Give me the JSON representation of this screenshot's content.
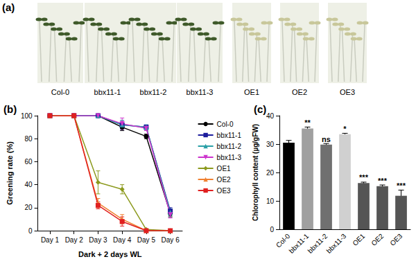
{
  "photo_panel": {
    "title": "(a)",
    "labels": [
      "Col-0",
      "bbx11-1",
      "bbx11-2",
      "bbx11-3",
      "OE1",
      "OE2",
      "OE3"
    ]
  },
  "chart_data": [
    {
      "type": "line",
      "title": "(b)",
      "x_label": "Dark + 2 days WL",
      "y_label": "Greening rate (%)",
      "categories": [
        "Day 1",
        "Day 2",
        "Day 3",
        "Day 4",
        "Day 5",
        "Day 6"
      ],
      "ylim": [
        0,
        100
      ],
      "yticks": [
        0,
        20,
        40,
        60,
        80,
        100
      ],
      "grid": false,
      "legend": "right",
      "series": [
        {
          "name": "Col-0",
          "color": "#000000",
          "marker": "circle",
          "values": [
            100,
            100,
            100,
            90,
            82,
            15
          ],
          "errors": [
            0,
            0,
            0,
            3,
            2,
            3
          ]
        },
        {
          "name": "bbx11-1",
          "color": "#1c1c9c",
          "marker": "square",
          "values": [
            100,
            100,
            100,
            92,
            90,
            17
          ],
          "errors": [
            0,
            0,
            0,
            3,
            2,
            3
          ]
        },
        {
          "name": "bbx11-2",
          "color": "#2a9fa6",
          "marker": "triangle",
          "values": [
            100,
            100,
            100,
            92,
            90,
            16
          ],
          "errors": [
            0,
            0,
            0,
            4,
            2,
            3
          ]
        },
        {
          "name": "bbx11-3",
          "color": "#cc33cc",
          "marker": "triangle-down",
          "values": [
            100,
            100,
            100,
            93,
            89,
            14
          ],
          "errors": [
            0,
            0,
            0,
            5,
            2,
            3
          ]
        },
        {
          "name": "OE1",
          "color": "#8c9a1e",
          "marker": "diamond",
          "values": [
            100,
            100,
            42,
            36,
            1,
            0
          ],
          "errors": [
            0,
            0,
            10,
            4,
            0,
            0
          ]
        },
        {
          "name": "OE2",
          "color": "#f08030",
          "marker": "triangle",
          "values": [
            100,
            100,
            24,
            10,
            0,
            0
          ],
          "errors": [
            0,
            0,
            4,
            4,
            0,
            0
          ]
        },
        {
          "name": "OE3",
          "color": "#e02020",
          "marker": "square",
          "values": [
            100,
            100,
            22,
            8,
            0,
            0
          ],
          "errors": [
            0,
            0,
            3,
            4,
            0,
            0
          ]
        }
      ]
    },
    {
      "type": "bar",
      "title": "(c)",
      "y_label": "Chlorophyll content (µg/gFW)",
      "categories": [
        "Col-0",
        "bbx11-1",
        "bbx11-2",
        "bbx11-3",
        "OE1",
        "OE2",
        "OE3"
      ],
      "values": [
        30.5,
        35.5,
        29.8,
        33.5,
        16.3,
        15.2,
        11.8
      ],
      "errors": [
        0.8,
        0.5,
        0.4,
        0.3,
        0.3,
        0.4,
        2.0
      ],
      "annotations": [
        "",
        "**",
        "ns",
        "*",
        "***",
        "***",
        "***"
      ],
      "colors": [
        "#000000",
        "#a0a0a0",
        "#707070",
        "#d0d0d0",
        "#555555",
        "#555555",
        "#555555"
      ],
      "ylim": [
        0,
        40
      ],
      "yticks": [
        0,
        10,
        20,
        30,
        40
      ],
      "grid": false
    }
  ]
}
